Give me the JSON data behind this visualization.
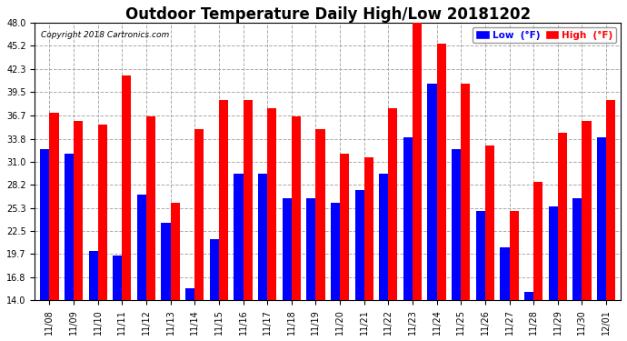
{
  "title": "Outdoor Temperature Daily High/Low 20181202",
  "copyright": "Copyright 2018 Cartronics.com",
  "dates": [
    "11/08",
    "11/09",
    "11/10",
    "11/11",
    "11/12",
    "11/13",
    "11/14",
    "11/15",
    "11/16",
    "11/17",
    "11/18",
    "11/19",
    "11/20",
    "11/21",
    "11/22",
    "11/23",
    "11/24",
    "11/25",
    "11/26",
    "11/27",
    "11/28",
    "11/29",
    "11/30",
    "12/01"
  ],
  "high": [
    37.0,
    36.0,
    35.5,
    41.5,
    36.5,
    26.0,
    35.0,
    38.5,
    38.5,
    37.5,
    36.5,
    35.0,
    32.0,
    31.5,
    37.5,
    48.0,
    45.5,
    40.5,
    33.0,
    25.0,
    28.5,
    34.5,
    36.0,
    38.5
  ],
  "low": [
    32.5,
    32.0,
    20.0,
    19.5,
    27.0,
    23.5,
    15.5,
    21.5,
    29.5,
    29.5,
    26.5,
    26.5,
    26.0,
    27.5,
    29.5,
    34.0,
    40.5,
    32.5,
    25.0,
    20.5,
    15.0,
    25.5,
    26.5,
    34.0
  ],
  "high_color": "#ff0000",
  "low_color": "#0000ff",
  "background_color": "#ffffff",
  "grid_color": "#aaaaaa",
  "ylim_min": 14.0,
  "ylim_max": 48.0,
  "yticks": [
    14.0,
    16.8,
    19.7,
    22.5,
    25.3,
    28.2,
    31.0,
    33.8,
    36.7,
    39.5,
    42.3,
    45.2,
    48.0
  ],
  "title_fontsize": 12,
  "legend_low_label": "Low  (°F)",
  "legend_high_label": "High  (°F)"
}
